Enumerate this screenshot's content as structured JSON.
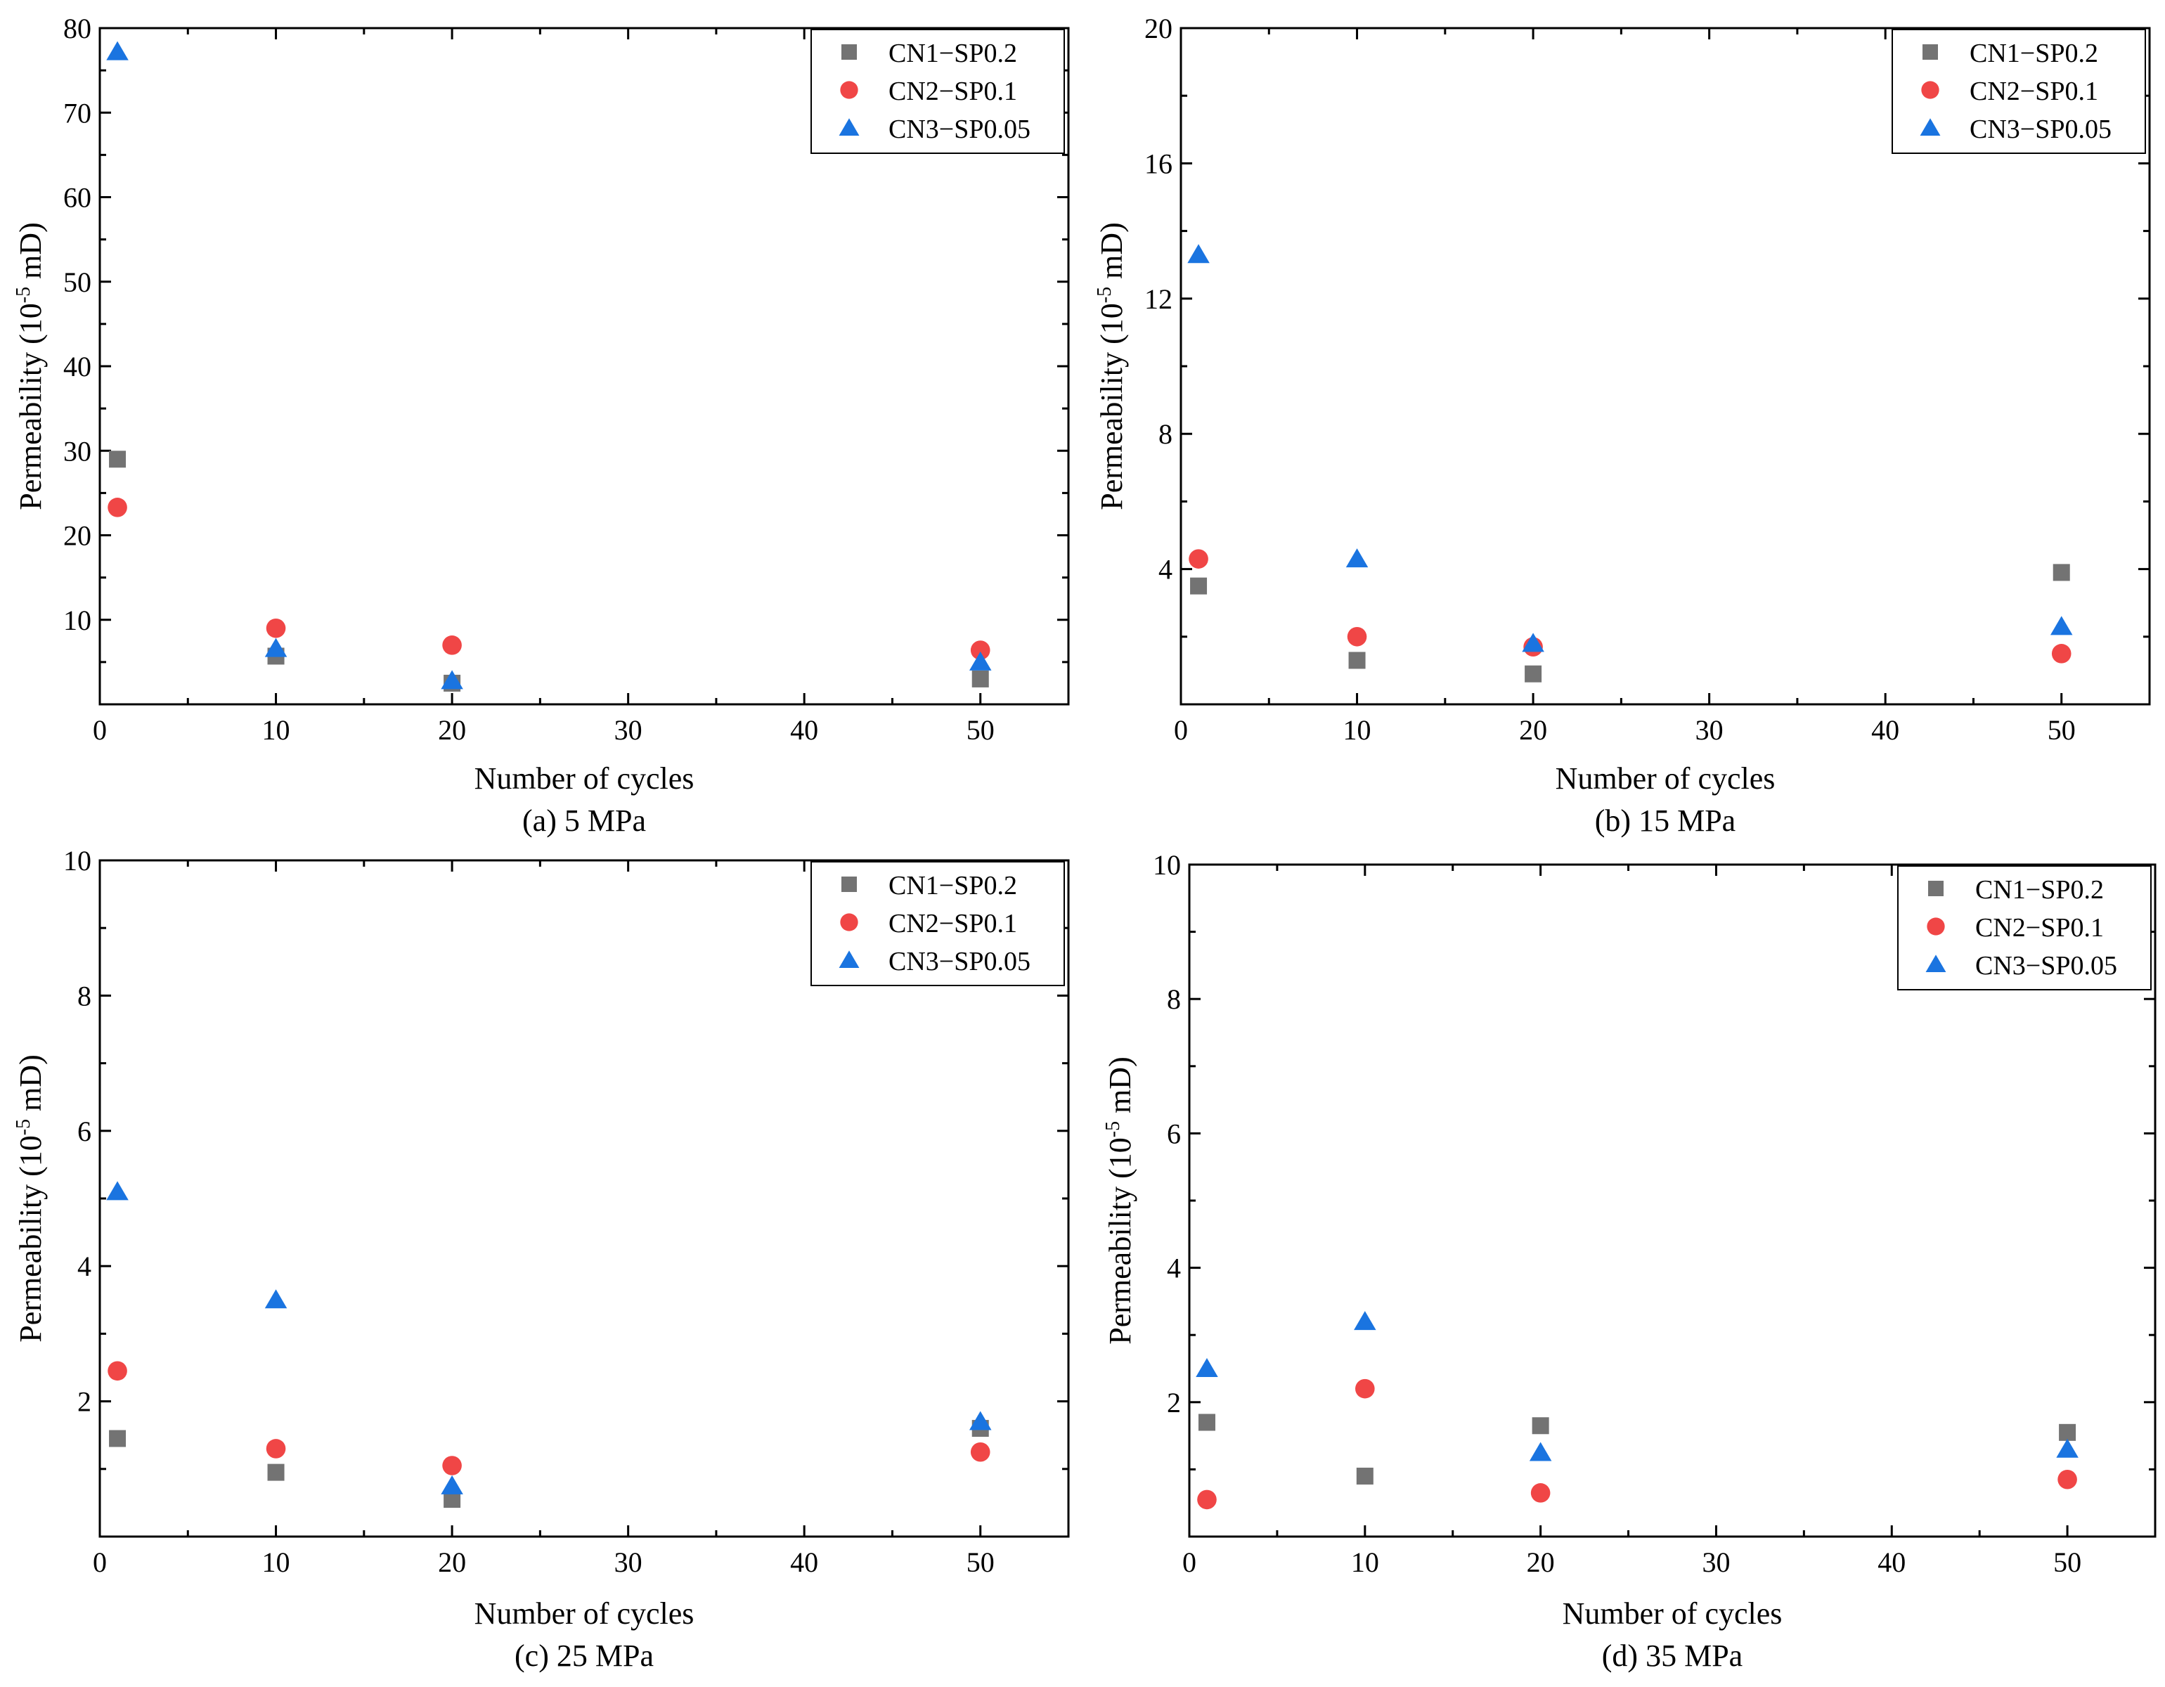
{
  "colors": {
    "series_0": "#737373",
    "series_1": "#f04646",
    "series_2": "#1a74e0"
  },
  "chart_data": [
    {
      "type": "scatter",
      "caption": "(a) 5 MPa",
      "xlabel": "Number of cycles",
      "ylabel_main": "Permeability (10",
      "ylabel_exp": "-5",
      "ylabel_unit": " mD)",
      "xlim": [
        0,
        55
      ],
      "ylim": [
        0,
        80
      ],
      "xticks": [
        0,
        10,
        20,
        30,
        40,
        50
      ],
      "yticks": [
        10,
        20,
        30,
        40,
        50,
        60,
        70,
        80
      ],
      "x": [
        1,
        10,
        20,
        50
      ],
      "legend_position": "top-right",
      "series": [
        {
          "name": "CN1−SP0.2",
          "marker": "square",
          "values": [
            29.0,
            5.7,
            2.5,
            3.0
          ]
        },
        {
          "name": "CN2−SP0.1",
          "marker": "circle",
          "values": [
            23.3,
            9.0,
            7.0,
            6.4
          ]
        },
        {
          "name": "CN3−SP0.05",
          "marker": "triangle",
          "values": [
            77.2,
            6.6,
            2.8,
            5.0
          ]
        }
      ]
    },
    {
      "type": "scatter",
      "caption": "(b) 15 MPa",
      "xlabel": "Number of cycles",
      "ylabel_main": "Permeability (10",
      "ylabel_exp": "-5",
      "ylabel_unit": " mD)",
      "xlim": [
        0,
        55
      ],
      "ylim": [
        0,
        20
      ],
      "xticks": [
        0,
        10,
        20,
        30,
        40,
        50
      ],
      "yticks": [
        4,
        8,
        12,
        16,
        20
      ],
      "x": [
        1,
        10,
        20,
        50
      ],
      "legend_position": "top-right",
      "series": [
        {
          "name": "CN1−SP0.2",
          "marker": "square",
          "values": [
            3.5,
            1.3,
            0.9,
            3.9
          ]
        },
        {
          "name": "CN2−SP0.1",
          "marker": "circle",
          "values": [
            4.3,
            2.0,
            1.7,
            1.5
          ]
        },
        {
          "name": "CN3−SP0.05",
          "marker": "triangle",
          "values": [
            13.3,
            4.3,
            1.8,
            2.3
          ]
        }
      ]
    },
    {
      "type": "scatter",
      "caption": "(c) 25 MPa",
      "xlabel": "Number of cycles",
      "ylabel_main": "Permeability (10",
      "ylabel_exp": "-5",
      "ylabel_unit": " mD)",
      "xlim": [
        0,
        55
      ],
      "ylim": [
        0,
        10
      ],
      "xticks": [
        0,
        10,
        20,
        30,
        40,
        50
      ],
      "yticks": [
        2,
        4,
        6,
        8,
        10
      ],
      "x": [
        1,
        10,
        20,
        50
      ],
      "legend_position": "top-right",
      "series": [
        {
          "name": "CN1−SP0.2",
          "marker": "square",
          "values": [
            1.45,
            0.95,
            0.55,
            1.6
          ]
        },
        {
          "name": "CN2−SP0.1",
          "marker": "circle",
          "values": [
            2.45,
            1.3,
            1.05,
            1.25
          ]
        },
        {
          "name": "CN3−SP0.05",
          "marker": "triangle",
          "values": [
            5.1,
            3.5,
            0.75,
            1.7
          ]
        }
      ]
    },
    {
      "type": "scatter",
      "caption": "(d) 35 MPa",
      "xlabel": "Number of cycles",
      "ylabel_main": "Permeability (10",
      "ylabel_exp": "-5",
      "ylabel_unit": " mD)",
      "xlim": [
        0,
        55
      ],
      "ylim": [
        0,
        10
      ],
      "xticks": [
        0,
        10,
        20,
        30,
        40,
        50
      ],
      "yticks": [
        2,
        4,
        6,
        8,
        10
      ],
      "x": [
        1,
        10,
        20,
        50
      ],
      "legend_position": "top-right",
      "series": [
        {
          "name": "CN1−SP0.2",
          "marker": "square",
          "values": [
            1.7,
            0.9,
            1.65,
            1.55
          ]
        },
        {
          "name": "CN2−SP0.1",
          "marker": "circle",
          "values": [
            0.55,
            2.2,
            0.65,
            0.85
          ]
        },
        {
          "name": "CN3−SP0.05",
          "marker": "triangle",
          "values": [
            2.5,
            3.2,
            1.25,
            1.3
          ]
        }
      ]
    }
  ]
}
